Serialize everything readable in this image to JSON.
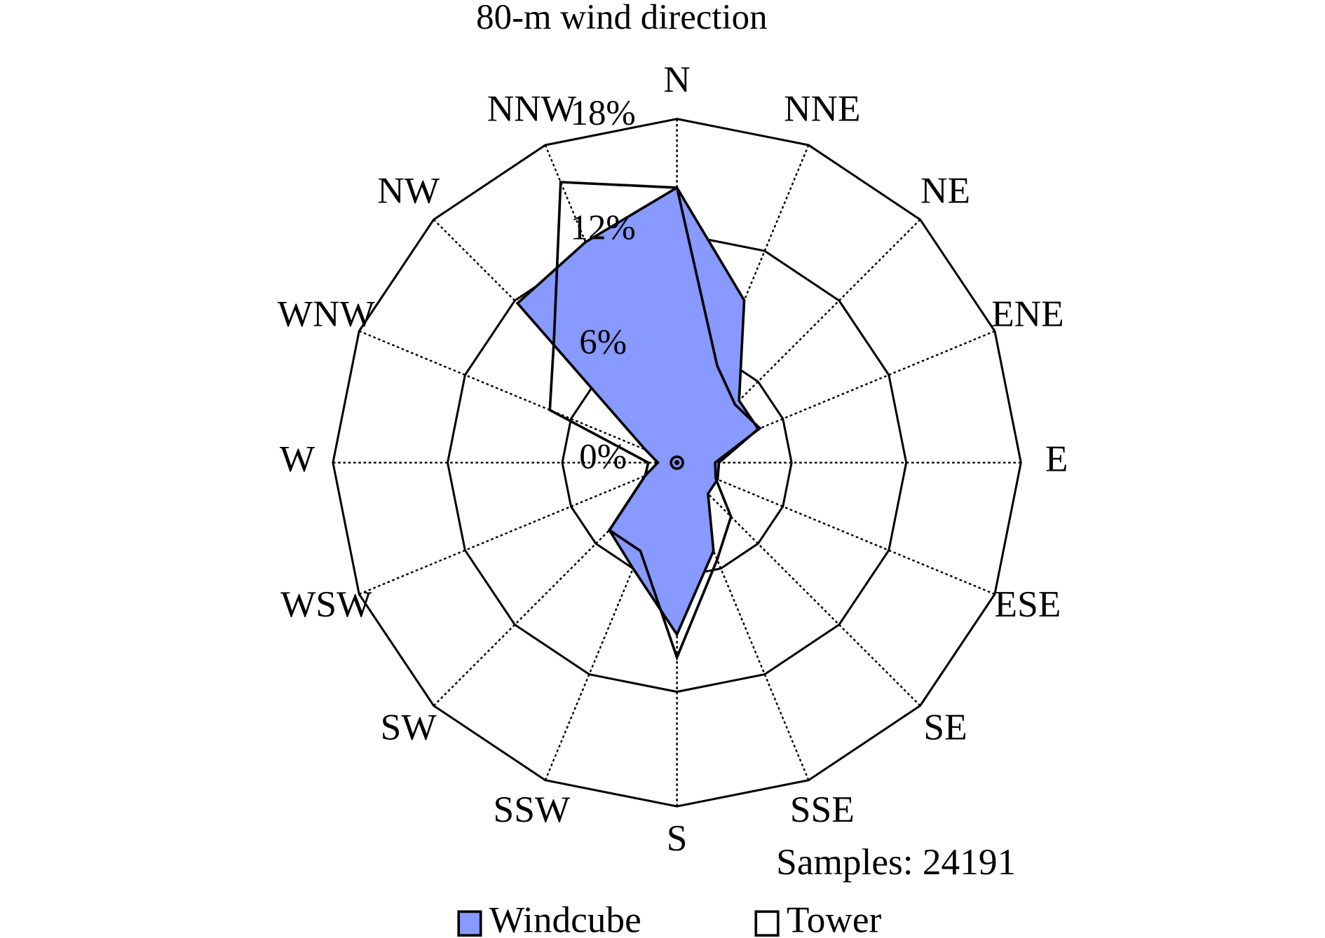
{
  "chart_data": {
    "type": "radar",
    "title": "80-m wind direction",
    "categories": [
      "N",
      "NNE",
      "NE",
      "ENE",
      "E",
      "ESE",
      "SE",
      "SSE",
      "S",
      "SSW",
      "SW",
      "WSW",
      "W",
      "WNW",
      "NW",
      "NNW"
    ],
    "series": [
      {
        "name": "Windcube",
        "color": "#8899ff",
        "values": [
          14.4,
          9.2,
          4.6,
          4.6,
          2.2,
          2.3,
          2.3,
          5.0,
          9.0,
          6.0,
          5.0,
          1.8,
          1.0,
          1.8,
          11.8,
          12.5
        ]
      },
      {
        "name": "Tower",
        "color": "#ffffff",
        "values": [
          14.4,
          5.5,
          4.3,
          4.7,
          2.0,
          2.2,
          4.0,
          5.5,
          10.2,
          5.0,
          5.0,
          1.8,
          1.5,
          7.2,
          9.1,
          15.9
        ]
      }
    ],
    "rlim": [
      0,
      18
    ],
    "rticks": [
      {
        "value": 0,
        "label": "0%"
      },
      {
        "value": 6,
        "label": "6%"
      },
      {
        "value": 12,
        "label": "12%"
      },
      {
        "value": 18,
        "label": "18%"
      }
    ],
    "annotation": "Samples: 24191",
    "legend": "bottom"
  }
}
